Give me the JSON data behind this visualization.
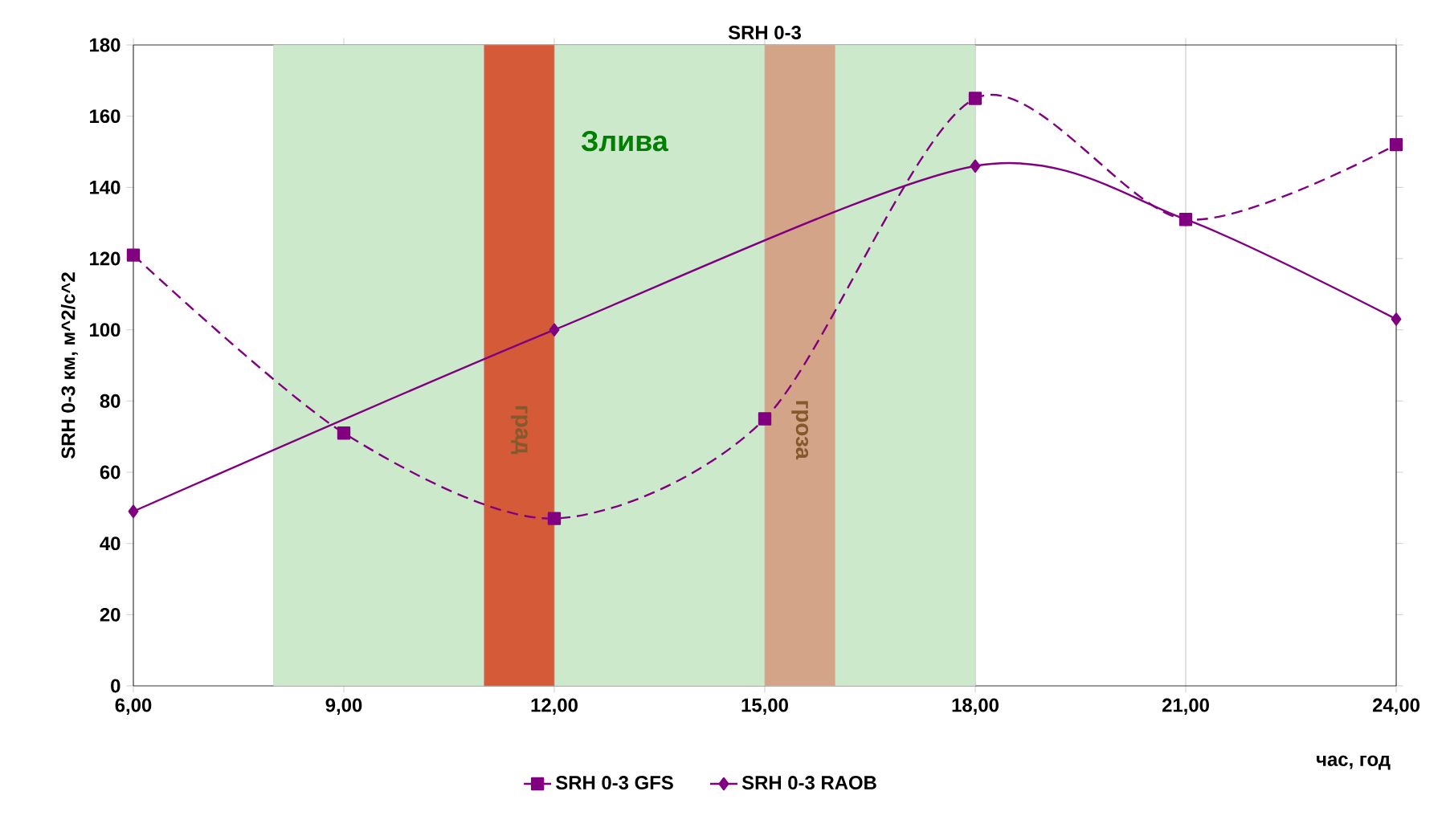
{
  "chart_data": {
    "type": "line",
    "title": "SRH 0-3",
    "xlabel": "час, год",
    "ylabel": "SRH 0-3 км, м^2/с^2",
    "x": [
      6,
      9,
      12,
      15,
      18,
      21,
      24
    ],
    "series": [
      {
        "name": "SRH 0-3 GFS",
        "color": "#800080",
        "marker": "square",
        "line_style": "dashed",
        "values": [
          121,
          71,
          47,
          75,
          165,
          131,
          152
        ]
      },
      {
        "name": "SRH 0-3 RAOB",
        "color": "#800080",
        "marker": "diamond",
        "line_style": "solid",
        "x": [
          6,
          12,
          18,
          21,
          24
        ],
        "values": [
          49,
          100,
          146,
          131,
          103
        ]
      }
    ],
    "xlim": [
      6,
      24
    ],
    "ylim": [
      0,
      180
    ],
    "xticks": [
      {
        "value": 6,
        "label": "6,00"
      },
      {
        "value": 9,
        "label": "9,00"
      },
      {
        "value": 12,
        "label": "12,00"
      },
      {
        "value": 15,
        "label": "15,00"
      },
      {
        "value": 18,
        "label": "18,00"
      },
      {
        "value": 21,
        "label": "21,00"
      },
      {
        "value": 24,
        "label": "24,00"
      }
    ],
    "yticks": [
      0,
      20,
      40,
      60,
      80,
      100,
      120,
      140,
      160,
      180
    ],
    "bands": [
      {
        "axis": "x",
        "from": 8,
        "to": 18,
        "label": "Злива",
        "color": "#cce9cc"
      },
      {
        "axis": "x",
        "from": 11,
        "to": 12,
        "label": "град",
        "color": "#d45a38"
      },
      {
        "axis": "x",
        "from": 15,
        "to": 16,
        "label": "гроза",
        "color": "#d4a488"
      }
    ],
    "grid": "x",
    "legend": "bottom"
  }
}
